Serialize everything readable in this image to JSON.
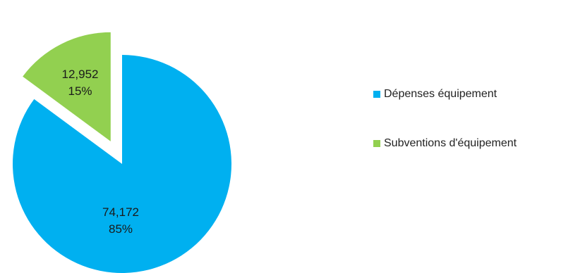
{
  "chart_data": {
    "type": "pie",
    "exploded": true,
    "legend_position": "right",
    "slices": [
      {
        "label": "Dépenses équipement",
        "value": 74172,
        "value_label": "74,172",
        "percent_label": "85%",
        "color": "#00b0f0"
      },
      {
        "label": "Subventions d'équipement",
        "value": 12952,
        "value_label": "12,952",
        "percent_label": "15%",
        "color": "#92d050"
      }
    ]
  }
}
